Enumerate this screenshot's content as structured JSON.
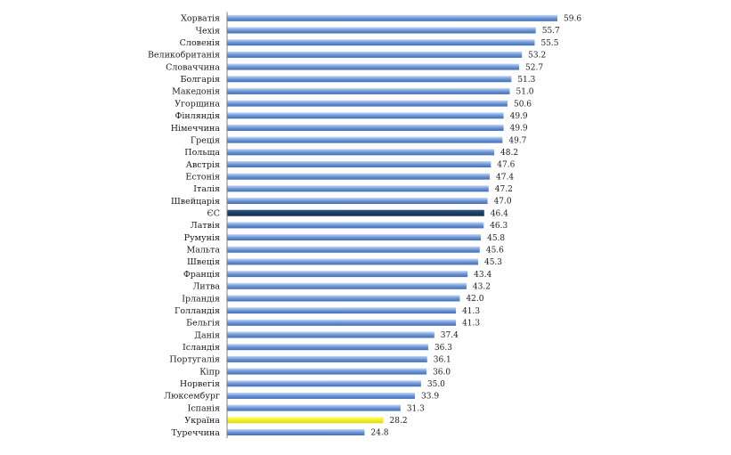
{
  "chart_data": {
    "type": "bar",
    "orientation": "horizontal",
    "categories": [
      "Хорватія",
      "Чехія",
      "Словенія",
      "Великобританія",
      "Словаччина",
      "Болгарія",
      "Македонія",
      "Угорщина",
      "Фінляндія",
      "Німеччина",
      "Греція",
      "Польща",
      "Австрія",
      "Естонія",
      "Італія",
      "Швейцарія",
      "ЄС",
      "Латвія",
      "Румунія",
      "Мальта",
      "Швеція",
      "Франція",
      "Литва",
      "Ірландія",
      "Голландія",
      "Бельгія",
      "Данія",
      "Ісландія",
      "Португалія",
      "Кіпр",
      "Норвегія",
      "Люксембург",
      "Іспанія",
      "Україна",
      "Туреччина"
    ],
    "values": [
      59.6,
      55.7,
      55.5,
      53.2,
      52.7,
      51.3,
      51.0,
      50.6,
      49.9,
      49.9,
      49.7,
      48.2,
      47.6,
      47.4,
      47.2,
      47.0,
      46.4,
      46.3,
      45.8,
      45.6,
      45.3,
      43.4,
      43.2,
      42.0,
      41.3,
      41.3,
      37.4,
      36.3,
      36.1,
      36.0,
      35.0,
      33.9,
      31.3,
      28.2,
      24.8
    ],
    "value_labels": [
      "59.6",
      "55.7",
      "55.5",
      "53.2",
      "52.7",
      "51.3",
      "51.0",
      "50.6",
      "49.9",
      "49.9",
      "49.7",
      "48.2",
      "47.6",
      "47.4",
      "47.2",
      "47.0",
      "46.4",
      "46.3",
      "45.8",
      "45.6",
      "45.3",
      "43.4",
      "43.2",
      "42.0",
      "41.3",
      "41.3",
      "37.4",
      "36.3",
      "36.1",
      "36.0",
      "35.0",
      "33.9",
      "31.3",
      "28.2",
      "24.8"
    ],
    "xlim": [
      0,
      62
    ],
    "grid": false,
    "colors": {
      "default_bar": "#6f97d6",
      "default_bar_light": "#c4d6f2",
      "highlight_eu": "#1f3f66",
      "highlight_ukraine": "#f2f21e",
      "axis": "#808080"
    },
    "highlights": {
      "ЄС": "highlight_eu",
      "Україна": "highlight_ukraine"
    }
  }
}
